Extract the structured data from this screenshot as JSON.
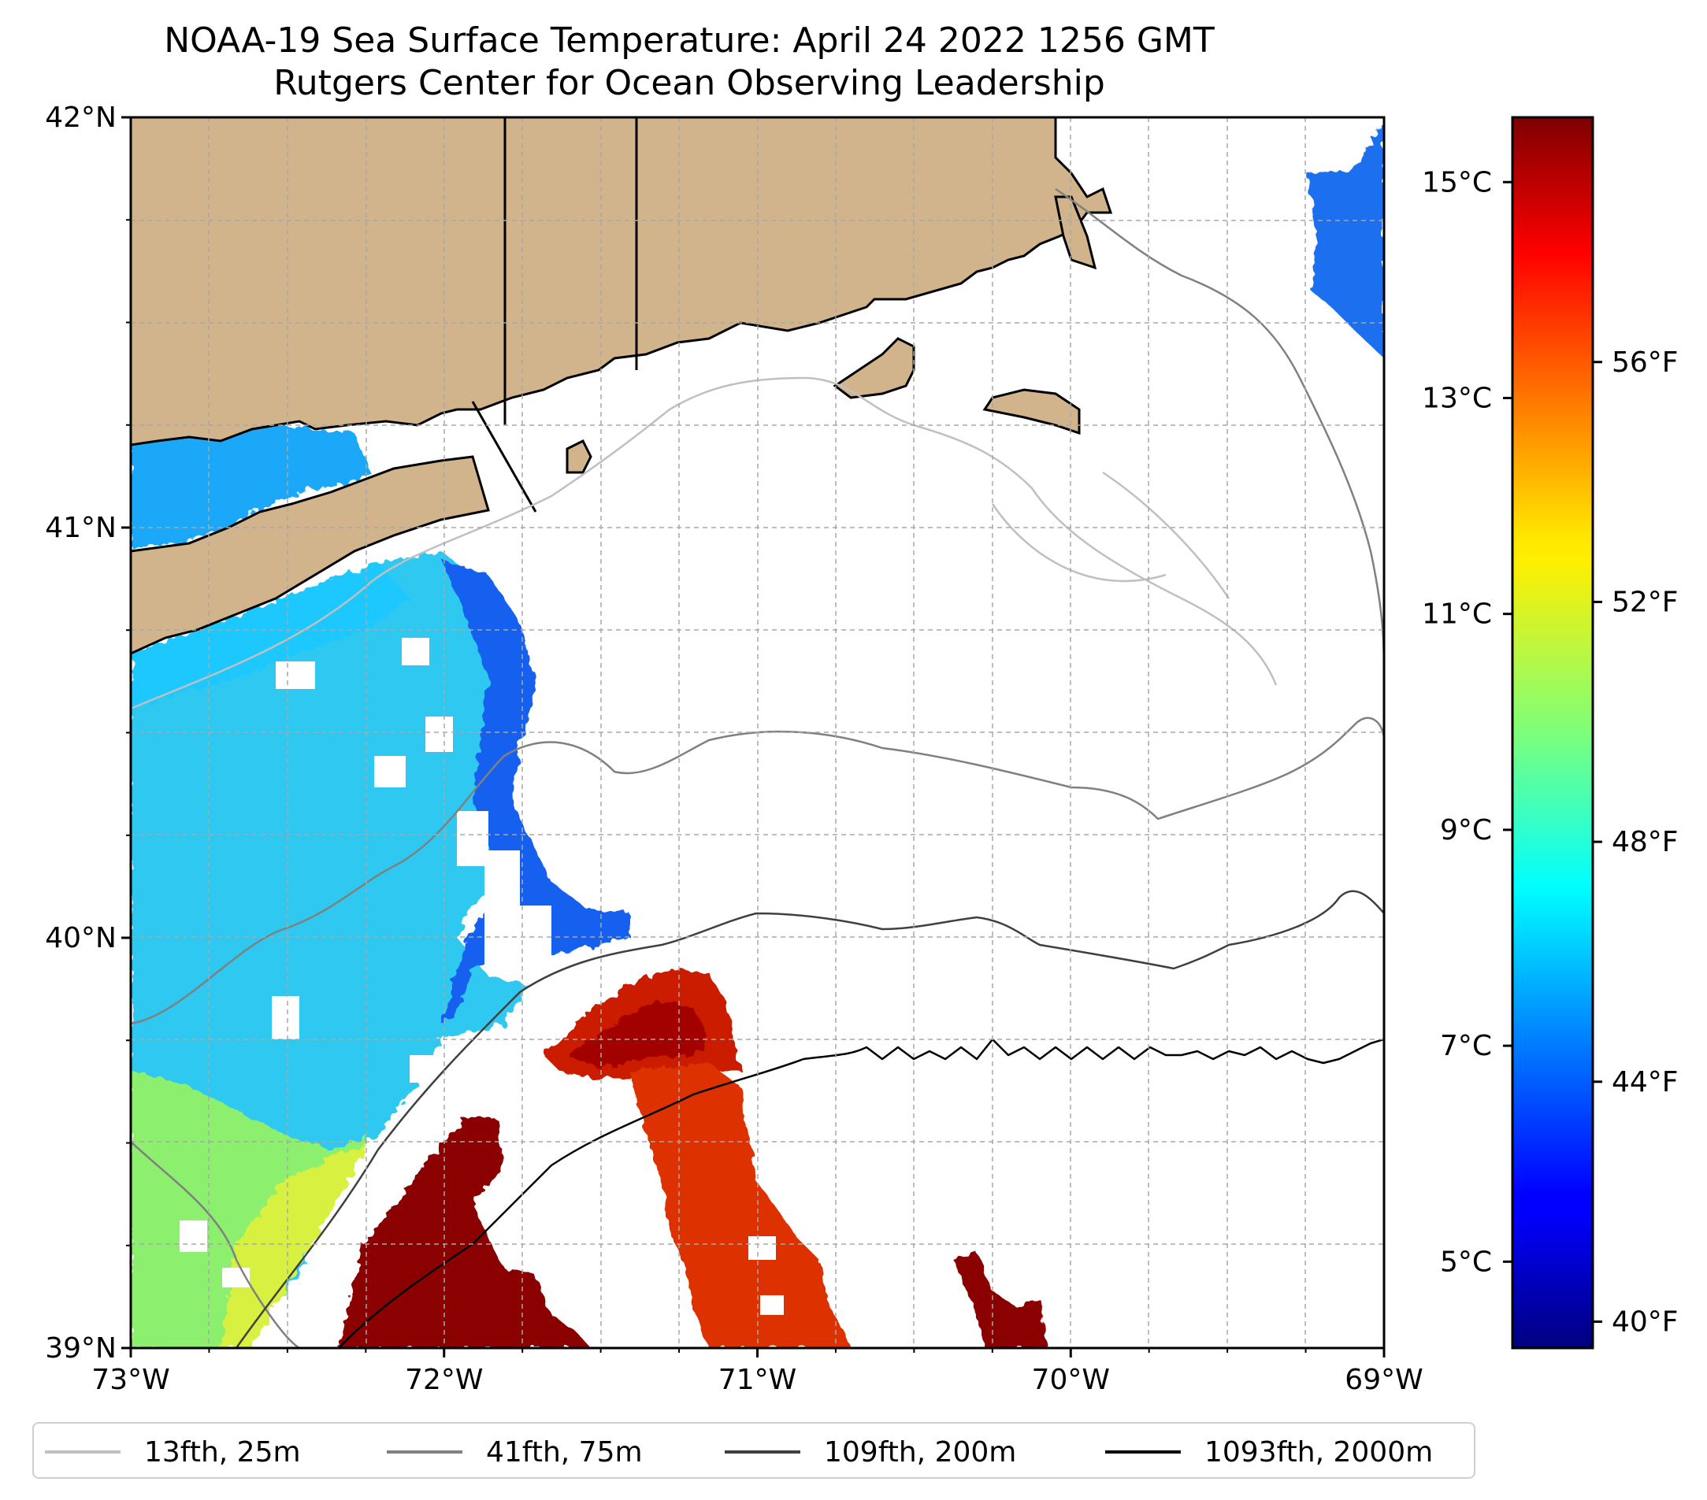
{
  "title": {
    "line1": "NOAA-19 Sea Surface Temperature: April 24 2022 1256 GMT",
    "line2": "Rutgers Center for Ocean Observing Leadership"
  },
  "map": {
    "lat_range": [
      39,
      42
    ],
    "lon_range": [
      -73,
      -69
    ],
    "lat_ticks": [
      {
        "value": 42,
        "label": "42°N"
      },
      {
        "value": 41,
        "label": "41°N"
      },
      {
        "value": 40,
        "label": "40°N"
      },
      {
        "value": 39,
        "label": "39°N"
      }
    ],
    "lon_ticks": [
      {
        "value": -73,
        "label": "73°W"
      },
      {
        "value": -72,
        "label": "72°W"
      },
      {
        "value": -71,
        "label": "71°W"
      },
      {
        "value": -70,
        "label": "70°W"
      },
      {
        "value": -69,
        "label": "69°W"
      }
    ],
    "land_color": "#d2b48c",
    "gridlines": true
  },
  "colorbar": {
    "colormap": "jet",
    "celsius_range": [
      4.2,
      15.6
    ],
    "celsius_ticks": [
      {
        "value": 15,
        "label": "15°C"
      },
      {
        "value": 13,
        "label": "13°C"
      },
      {
        "value": 11,
        "label": "11°C"
      },
      {
        "value": 9,
        "label": "9°C"
      },
      {
        "value": 7,
        "label": "7°C"
      },
      {
        "value": 5,
        "label": "5°C"
      }
    ],
    "fahrenheit_ticks": [
      {
        "value": 56,
        "label": "56°F"
      },
      {
        "value": 52,
        "label": "52°F"
      },
      {
        "value": 48,
        "label": "48°F"
      },
      {
        "value": 44,
        "label": "44°F"
      },
      {
        "value": 40,
        "label": "40°F"
      }
    ]
  },
  "legend": {
    "items": [
      {
        "label": "13fth, 25m",
        "color": "#c0c0c0"
      },
      {
        "label": "41fth, 75m",
        "color": "#808080"
      },
      {
        "label": "109fth, 200m",
        "color": "#404040"
      },
      {
        "label": "1093fth, 2000m",
        "color": "#000000"
      }
    ]
  }
}
